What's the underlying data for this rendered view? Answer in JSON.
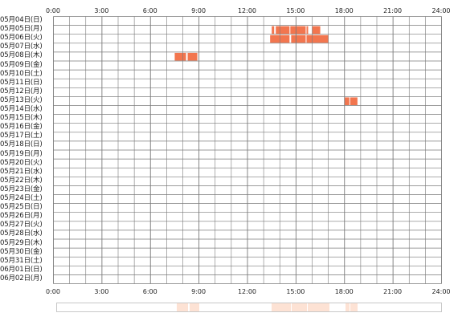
{
  "timeline": {
    "hours": [
      "0:00",
      "3:00",
      "6:00",
      "9:00",
      "12:00",
      "15:00",
      "18:00",
      "21:00",
      "24:00"
    ],
    "days": [
      "05月04日(日)",
      "05月05日(月)",
      "05月06日(火)",
      "05月07日(水)",
      "05月08日(木)",
      "05月09日(金)",
      "05月10日(土)",
      "05月11日(日)",
      "05月12日(月)",
      "05月13日(火)",
      "05月14日(水)",
      "05月15日(木)",
      "05月16日(金)",
      "05月17日(土)",
      "05月18日(日)",
      "05月19日(月)",
      "05月20日(火)",
      "05月21日(水)",
      "05月22日(木)",
      "05月23日(金)",
      "05月24日(土)",
      "05月25日(日)",
      "05月26日(月)",
      "05月27日(火)",
      "05月28日(水)",
      "05月29日(木)",
      "05月30日(金)",
      "05月31日(土)",
      "06月01日(日)",
      "06月02日(月)"
    ],
    "activity_color": "#f2764f",
    "overview_color": "#fde2d4",
    "grid_color": "#7a7a7a",
    "activity": [
      {
        "day": 1,
        "start": 13.5,
        "end": 13.65
      },
      {
        "day": 1,
        "start": 13.75,
        "end": 14.6
      },
      {
        "day": 1,
        "start": 14.65,
        "end": 15.6
      },
      {
        "day": 1,
        "start": 15.65,
        "end": 15.75
      },
      {
        "day": 1,
        "start": 16.0,
        "end": 16.5
      },
      {
        "day": 2,
        "start": 13.4,
        "end": 14.6
      },
      {
        "day": 2,
        "start": 14.7,
        "end": 15.6
      },
      {
        "day": 2,
        "start": 15.65,
        "end": 17.0
      },
      {
        "day": 4,
        "start": 7.5,
        "end": 8.2
      },
      {
        "day": 4,
        "start": 8.3,
        "end": 8.9
      },
      {
        "day": 9,
        "start": 18.0,
        "end": 18.3
      },
      {
        "day": 9,
        "start": 18.35,
        "end": 18.8
      }
    ]
  }
}
